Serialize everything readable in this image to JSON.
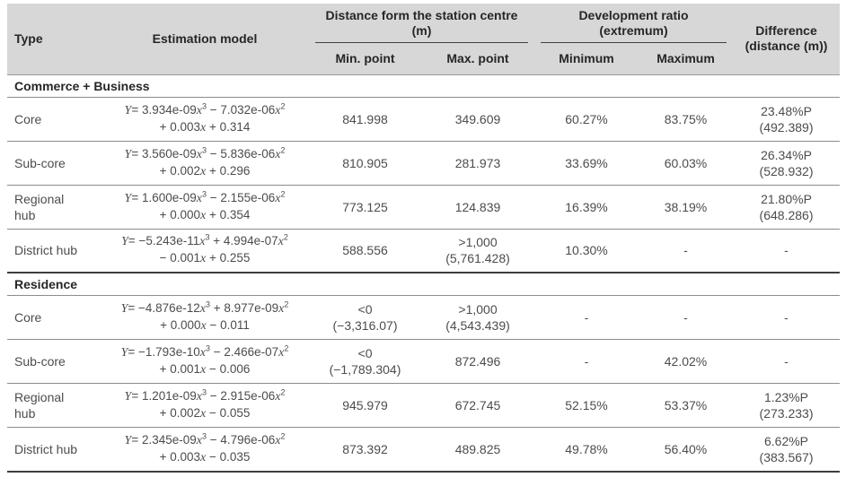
{
  "header": {
    "col_type": "Type",
    "col_model": "Estimation model",
    "group_distance": [
      "Distance form the station centre",
      "(m)"
    ],
    "group_ratio": [
      "Development ratio",
      "(extremum)"
    ],
    "col_difference": [
      "Difference",
      "(distance (m))"
    ],
    "sub_min_point": "Min. point",
    "sub_max_point": "Max. point",
    "sub_minimum": "Minimum",
    "sub_maximum": "Maximum"
  },
  "colors": {
    "header_bg": "#d7d7d7",
    "header_text": "#262626",
    "body_text": "#4c4c4c",
    "rule_thin": "#8c8c8c",
    "rule_thick": "#3d3d3d"
  },
  "sections": [
    {
      "title": "Commerce + Business",
      "rows": [
        {
          "type": "Core",
          "model": [
            "Y= 3.934e-09x^3 − 7.032e-06x^2",
            "+ 0.003x + 0.314"
          ],
          "min_point": "841.998",
          "max_point": "349.609",
          "minimum": "60.27%",
          "maximum": "83.75%",
          "difference": [
            "23.48%P",
            "(492.389)"
          ]
        },
        {
          "type": "Sub-core",
          "model": [
            "Y= 3.560e-09x^3 − 5.836e-06x^2",
            "+ 0.002x + 0.296"
          ],
          "min_point": "810.905",
          "max_point": "281.973",
          "minimum": "33.69%",
          "maximum": "60.03%",
          "difference": [
            "26.34%P",
            "(528.932)"
          ]
        },
        {
          "type": "Regional hub",
          "model": [
            "Y= 1.600e-09x^3 − 2.155e-06x^2",
            "+ 0.000x + 0.354"
          ],
          "min_point": "773.125",
          "max_point": "124.839",
          "minimum": "16.39%",
          "maximum": "38.19%",
          "difference": [
            "21.80%P",
            "(648.286)"
          ]
        },
        {
          "type": "District hub",
          "model": [
            "Y= −5.243e-11x^3 + 4.994e-07x^2",
            "− 0.001x + 0.255"
          ],
          "min_point": "588.556",
          "max_point": [
            ">1,000",
            "(5,761.428)"
          ],
          "minimum": "10.30%",
          "maximum": "-",
          "difference": "-"
        }
      ]
    },
    {
      "title": "Residence",
      "rows": [
        {
          "type": "Core",
          "model": [
            "Y= −4.876e-12x^3 + 8.977e-09x^2",
            "+ 0.000x − 0.011"
          ],
          "min_point": [
            "<0",
            "(−3,316.07)"
          ],
          "max_point": [
            ">1,000",
            "(4,543.439)"
          ],
          "minimum": "-",
          "maximum": "-",
          "difference": "-"
        },
        {
          "type": "Sub-core",
          "model": [
            "Y= −1.793e-10x^3 − 2.466e-07x^2",
            "+ 0.001x − 0.006"
          ],
          "min_point": [
            "<0",
            "(−1,789.304)"
          ],
          "max_point": "872.496",
          "minimum": "-",
          "maximum": "42.02%",
          "difference": "-"
        },
        {
          "type": "Regional hub",
          "model": [
            "Y= 1.201e-09x^3 − 2.915e-06x^2",
            "+ 0.002x − 0.055"
          ],
          "min_point": "945.979",
          "max_point": "672.745",
          "minimum": "52.15%",
          "maximum": "53.37%",
          "difference": [
            "1.23%P",
            "(273.233)"
          ]
        },
        {
          "type": "District hub",
          "model": [
            "Y= 2.345e-09x^3 − 4.796e-06x^2",
            "+ 0.003x − 0.035"
          ],
          "min_point": "873.392",
          "max_point": "489.825",
          "minimum": "49.78%",
          "maximum": "56.40%",
          "difference": [
            "6.62%P",
            "(383.567)"
          ]
        }
      ]
    }
  ]
}
